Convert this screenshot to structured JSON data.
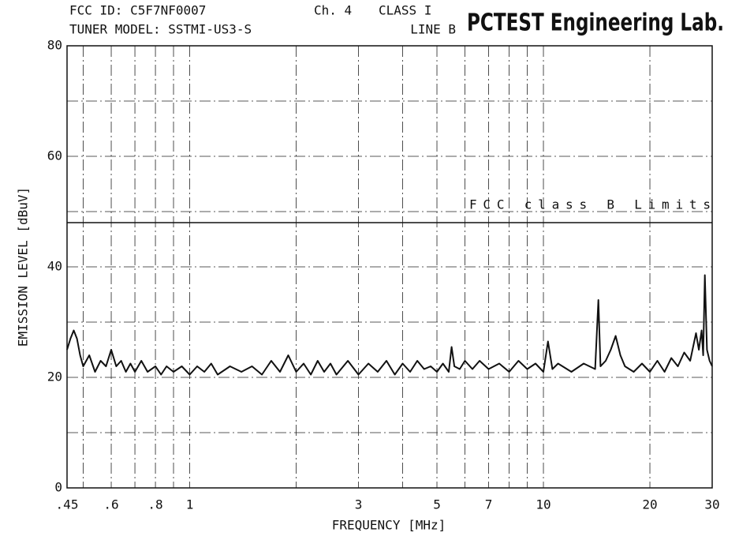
{
  "chart_data": {
    "type": "line",
    "header": {
      "fcc_id": "FCC ID: C5F7NF0007",
      "channel": "Ch. 4",
      "class": "CLASS I",
      "tuner": "TUNER MODEL: SSTMI-US3-S",
      "line": "LINE B",
      "lab": "PCTEST Engineering Lab."
    },
    "x_label": "FREQUENCY [MHz]",
    "y_label": "EMISSION LEVEL [dBuV]",
    "x_log": true,
    "grid": true,
    "xlim": [
      0.45,
      30
    ],
    "ylim": [
      0,
      80
    ],
    "xticks": [
      {
        "value": 0.45,
        "label": ".45"
      },
      {
        "value": 0.6,
        "label": ".6"
      },
      {
        "value": 0.8,
        "label": ".8"
      },
      1,
      3,
      5,
      7,
      10,
      20,
      30
    ],
    "x_minor_ticks": [
      0.5,
      0.7,
      0.9,
      2,
      4,
      6,
      8,
      9
    ],
    "yticks": [
      0,
      20,
      40,
      60,
      80
    ],
    "y_minor_ticks": [
      10,
      30,
      50,
      70
    ],
    "limit": {
      "value": 48,
      "label": "FCC class B Limits"
    },
    "x": [
      0.45,
      0.46,
      0.47,
      0.48,
      0.49,
      0.5,
      0.52,
      0.54,
      0.56,
      0.58,
      0.6,
      0.62,
      0.64,
      0.66,
      0.68,
      0.7,
      0.73,
      0.76,
      0.8,
      0.83,
      0.86,
      0.9,
      0.95,
      1,
      1.05,
      1.1,
      1.15,
      1.2,
      1.3,
      1.4,
      1.5,
      1.6,
      1.7,
      1.8,
      1.9,
      2,
      2.1,
      2.2,
      2.3,
      2.4,
      2.5,
      2.6,
      2.8,
      3,
      3.2,
      3.4,
      3.6,
      3.8,
      4,
      4.2,
      4.4,
      4.6,
      4.8,
      5,
      5.2,
      5.4,
      5.5,
      5.6,
      5.8,
      6,
      6.3,
      6.6,
      7,
      7.5,
      8,
      8.5,
      9,
      9.5,
      10,
      10.3,
      10.6,
      11,
      12,
      13,
      14,
      14.3,
      14.5,
      15,
      15.5,
      16,
      16.5,
      17,
      18,
      19,
      20,
      21,
      22,
      23,
      24,
      25,
      26,
      27,
      27.5,
      28,
      28.3,
      28.6,
      29,
      29.5,
      30
    ],
    "series": [
      {
        "name": "Line B",
        "color": "#111111",
        "values": [
          25,
          27,
          28.5,
          27,
          24,
          22,
          24,
          21,
          23,
          22,
          25,
          22,
          23,
          21,
          22.5,
          21,
          23,
          21,
          22,
          20.5,
          22,
          21,
          22,
          20.5,
          22,
          21,
          22.5,
          20.5,
          22,
          21,
          22,
          20.5,
          23,
          21,
          24,
          21,
          22.5,
          20.5,
          23,
          21,
          22.5,
          20.5,
          23,
          20.5,
          22.5,
          21,
          23,
          20.5,
          22.5,
          21,
          23,
          21.5,
          22,
          21,
          22.5,
          21,
          25.5,
          22,
          21.5,
          23,
          21.5,
          23,
          21.5,
          22.5,
          21,
          23,
          21.5,
          22.5,
          21,
          26.5,
          21.5,
          22.5,
          21,
          22.5,
          21.5,
          34,
          22,
          23,
          25,
          27.5,
          24,
          22,
          21,
          22.5,
          21,
          23,
          21,
          23.5,
          22,
          24.5,
          23,
          28,
          25,
          28.5,
          24,
          38.5,
          25,
          23,
          22
        ]
      }
    ]
  }
}
